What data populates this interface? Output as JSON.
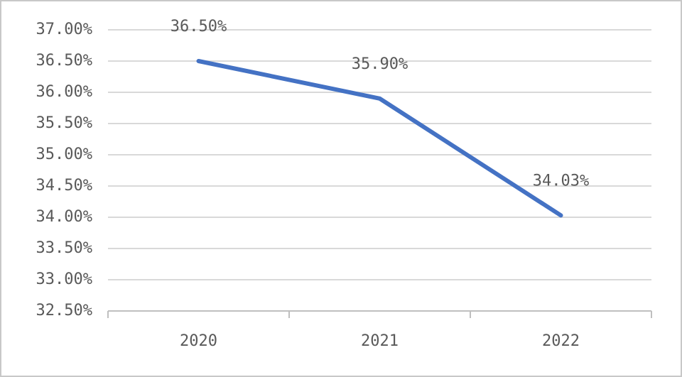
{
  "chart_data": {
    "type": "line",
    "categories": [
      "2020",
      "2021",
      "2022"
    ],
    "series": [
      {
        "name": null,
        "color": "#4472c4",
        "values": [
          36.5,
          35.9,
          34.03
        ],
        "value_labels": [
          "36.50%",
          "35.90%",
          "34.03%"
        ]
      }
    ],
    "ylim": [
      32.5,
      37
    ],
    "yticks": [
      {
        "value": 32.5,
        "label": "32.50%"
      },
      {
        "value": 33,
        "label": "33.00%"
      },
      {
        "value": 33.5,
        "label": "33.50%"
      },
      {
        "value": 34,
        "label": "34.00%"
      },
      {
        "value": 34.5,
        "label": "34.50%"
      },
      {
        "value": 35,
        "label": "35.00%"
      },
      {
        "value": 35.5,
        "label": "35.50%"
      },
      {
        "value": 36,
        "label": "36.00%"
      },
      {
        "value": 36.5,
        "label": "36.50%"
      },
      {
        "value": 37,
        "label": "37.00%"
      }
    ],
    "grid": true
  }
}
